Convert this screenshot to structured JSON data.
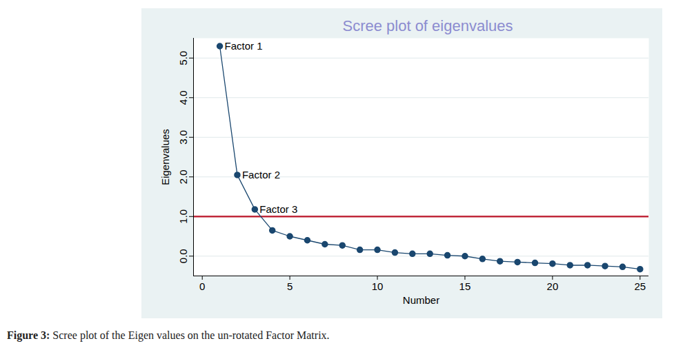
{
  "chart_data": {
    "type": "line",
    "title": "Scree plot of eigenvalues",
    "x": [
      1,
      2,
      3,
      4,
      5,
      6,
      7,
      8,
      9,
      10,
      11,
      12,
      13,
      14,
      15,
      16,
      17,
      18,
      19,
      20,
      21,
      22,
      23,
      24,
      25
    ],
    "values": [
      5.3,
      2.05,
      1.18,
      0.65,
      0.5,
      0.4,
      0.3,
      0.27,
      0.16,
      0.16,
      0.09,
      0.06,
      0.06,
      0.02,
      0.0,
      -0.07,
      -0.13,
      -0.15,
      -0.17,
      -0.19,
      -0.23,
      -0.23,
      -0.25,
      -0.27,
      -0.33
    ],
    "point_labels": [
      "Factor 1",
      "Factor 2",
      "Factor 3",
      null,
      null,
      null,
      null,
      null,
      null,
      null,
      null,
      null,
      null,
      null,
      null,
      null,
      null,
      null,
      null,
      null,
      null,
      null,
      null,
      null,
      null
    ],
    "color": "#1a476f",
    "marker": "circle",
    "x_label": "Number",
    "y_label": "Eigenvalues",
    "xlim": [
      -0.5,
      25.5
    ],
    "xticks": [
      0,
      5,
      10,
      15,
      20,
      25
    ],
    "ylim": [
      -0.5,
      5.5
    ],
    "yticks": [
      0,
      1,
      2,
      3,
      4,
      5
    ],
    "grid": true,
    "reference_line": {
      "value": 1,
      "color": "#c0283a"
    },
    "caption": {
      "label": "Figure 3:",
      "text": "Scree plot of the Eigen values on the un-rotated Factor Matrix."
    }
  }
}
